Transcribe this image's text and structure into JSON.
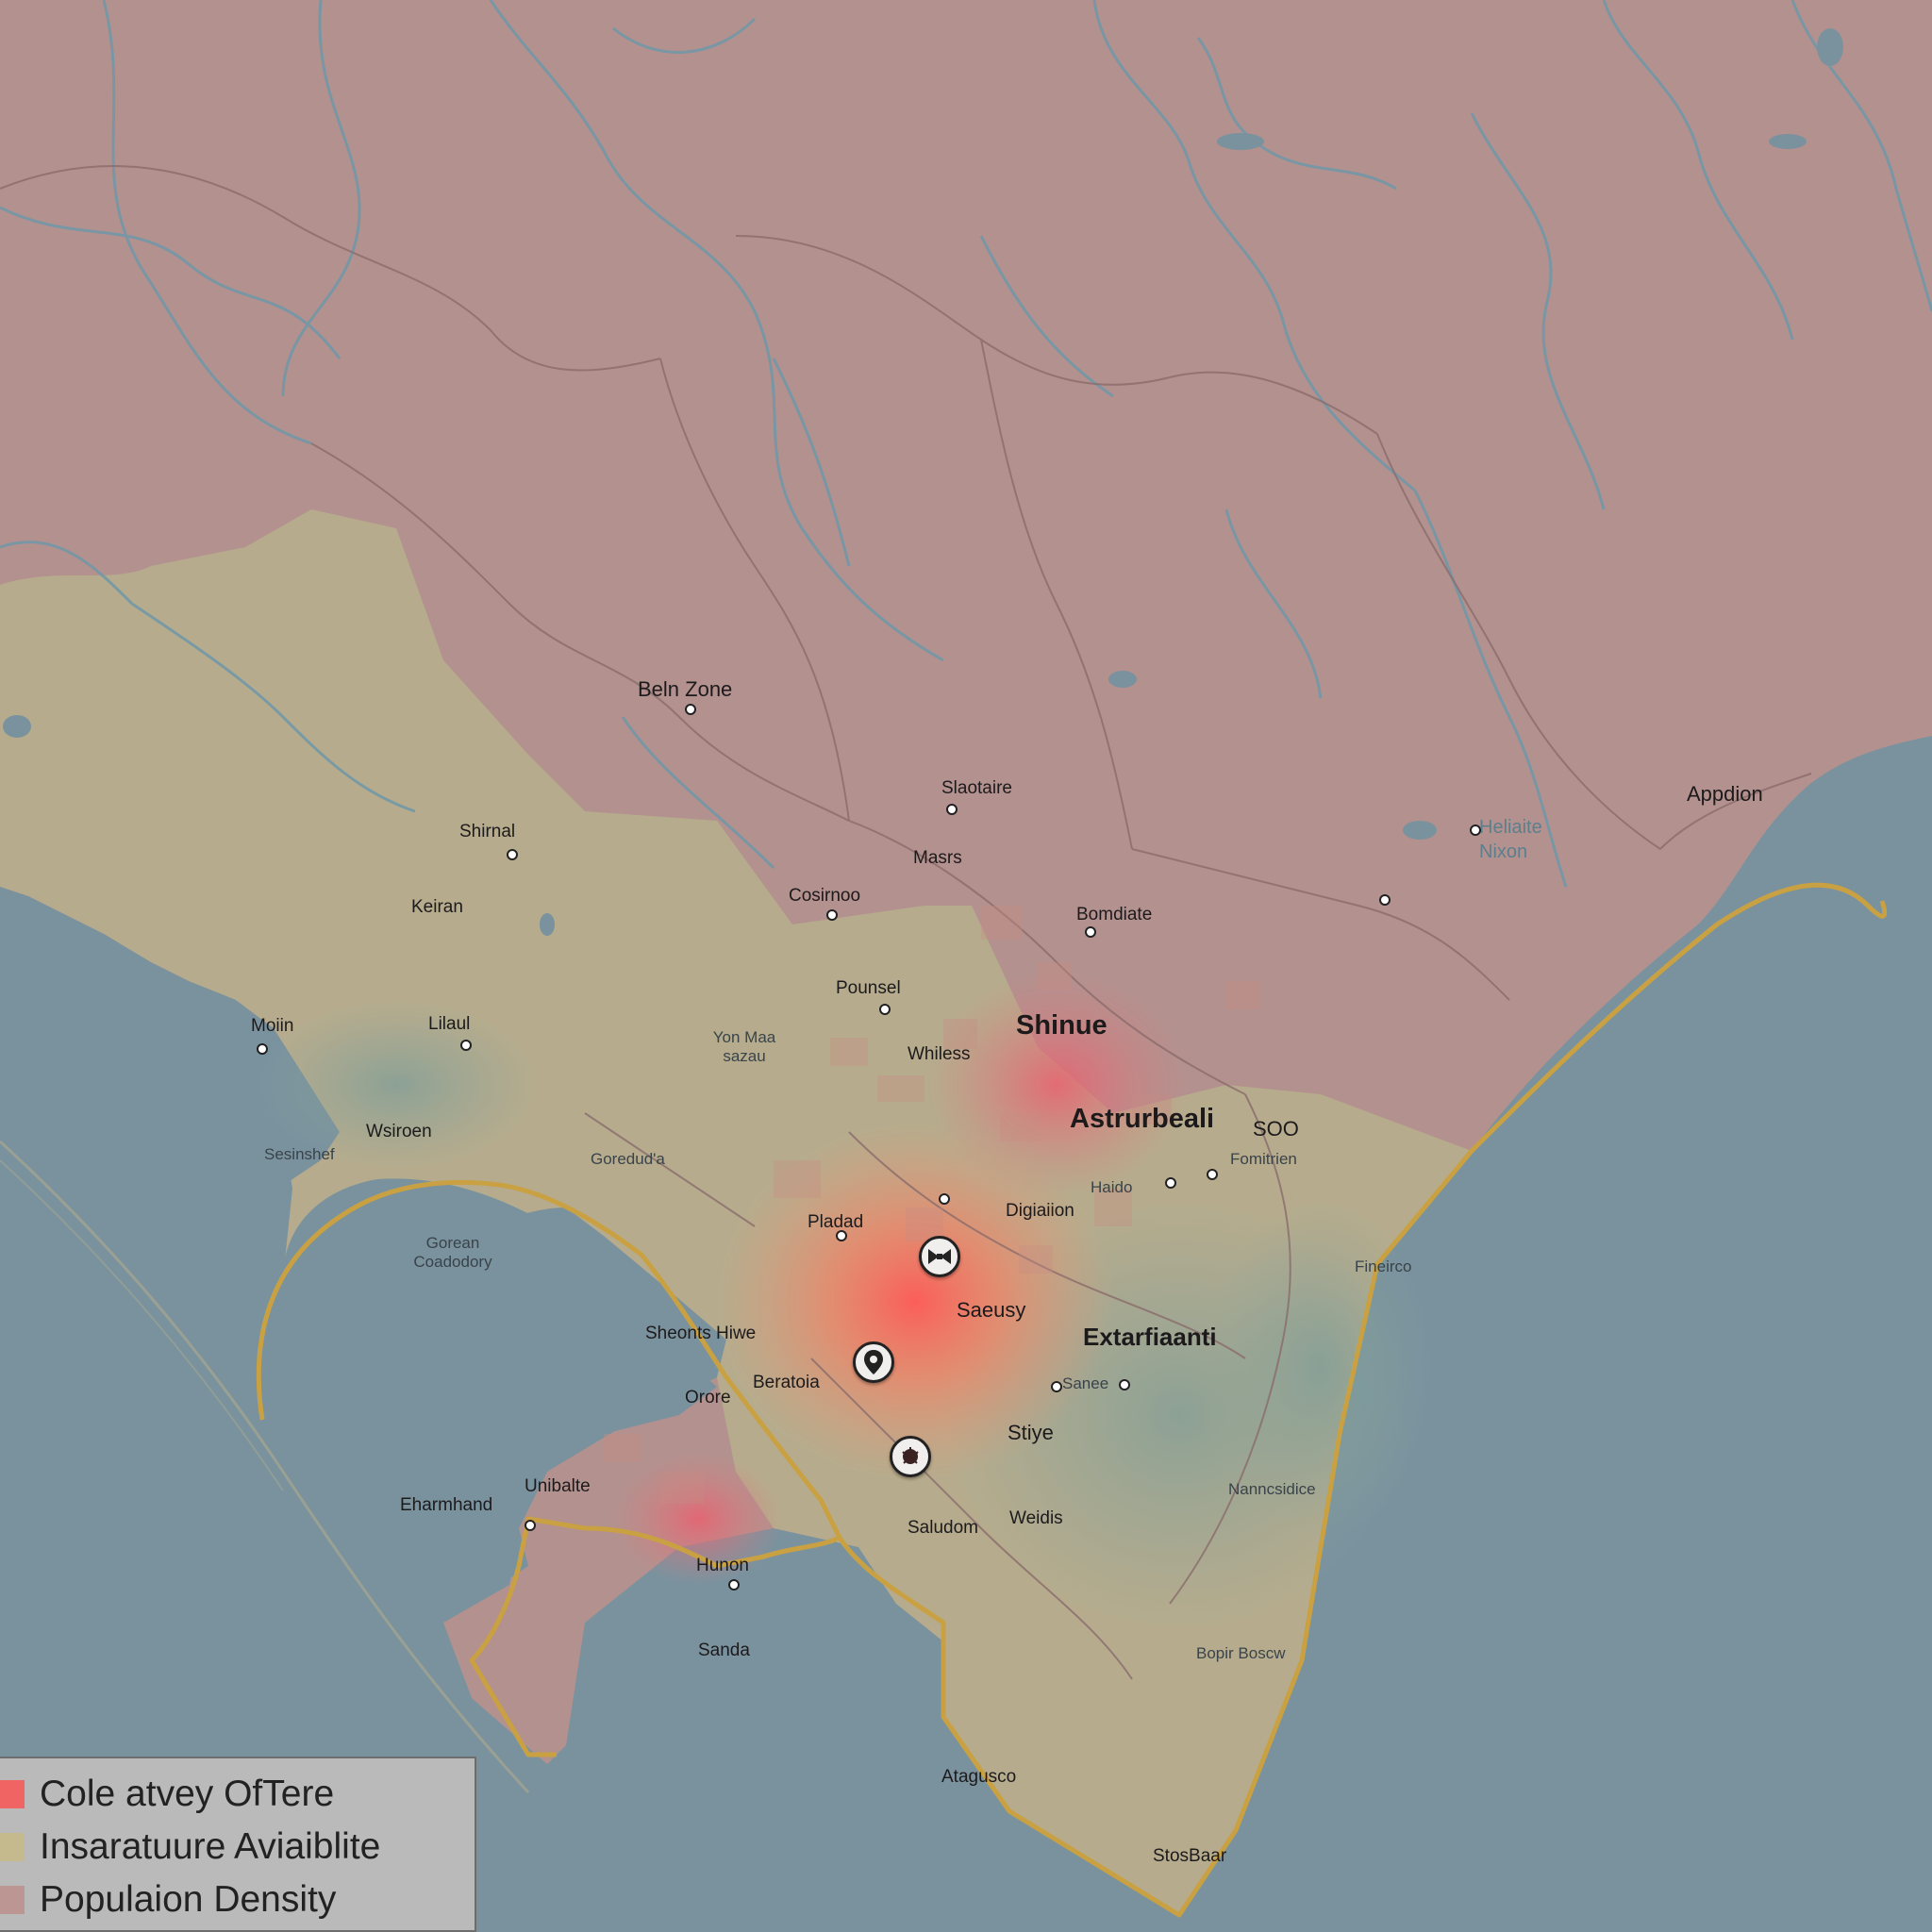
{
  "map": {
    "colors": {
      "water": "#7a929e",
      "population_density": "#b3918e",
      "infrastructure": "#b7b08f",
      "cost_of_care_hot": "#f06a5e",
      "low_access": "#8ea19a",
      "boundary": "#c9a142",
      "rivers": "#6f97a8"
    },
    "labels": {
      "beln_zone": "Beln Zone",
      "slaotaire": "Slaotaire",
      "appdion": "Appdion",
      "shirnal": "Shirnal",
      "keiran": "Keiran",
      "masrs": "Masrs",
      "cosirnoo": "Cosirnoo",
      "bomdiate": "Bomdiate",
      "heliaite_nixon": "Heliaite Nixon",
      "pounsel": "Pounsel",
      "moiin": "Moiin",
      "lilaul": "Lilaul",
      "yon_maa_sazau": "Yon Maa sazau",
      "whiless": "Whiless",
      "shinue": "Shinue",
      "wsiroen": "Wsiroen",
      "sesinshef": "Sesinshef",
      "gorendaa": "Goredud'a",
      "astrurbeali": "Astrurbeali",
      "soo": "SOO",
      "fomitrien": "Fomitrien",
      "hado": "Haido",
      "digiaiion": "Digiaiion",
      "gorean_coadory": "Gorean Coadodory",
      "pladad": "Pladad",
      "finerico": "Fineirco",
      "sheotts_hiwe": "Sheonts Hiwe",
      "saeusy": "Saeusy",
      "extarfiaanti": "Extarfiaanti",
      "orore": "Orore",
      "beratoia": "Beratoia",
      "sanee": "Sanee",
      "stiye": "Stiye",
      "unibalte": "Unibalte",
      "ehtarmhand": "Eharmhand",
      "saludom": "Saludom",
      "weidis": "Weidis",
      "nanncsidice": "Nanncsidice",
      "hunon": "Hunon",
      "sanda": "Sanda",
      "bopir_bosciv": "Bopir Boscw",
      "atagusco": "Atagusco",
      "stosbaar": "StosBaar"
    }
  },
  "legend": {
    "items": [
      {
        "label": "Cole atvey OfTere",
        "color": "#f06464"
      },
      {
        "label": "Insaratuure Aviaiblite",
        "color": "#c4ba8e"
      },
      {
        "label": "Populaion Density",
        "color": "#bc9693"
      }
    ]
  }
}
